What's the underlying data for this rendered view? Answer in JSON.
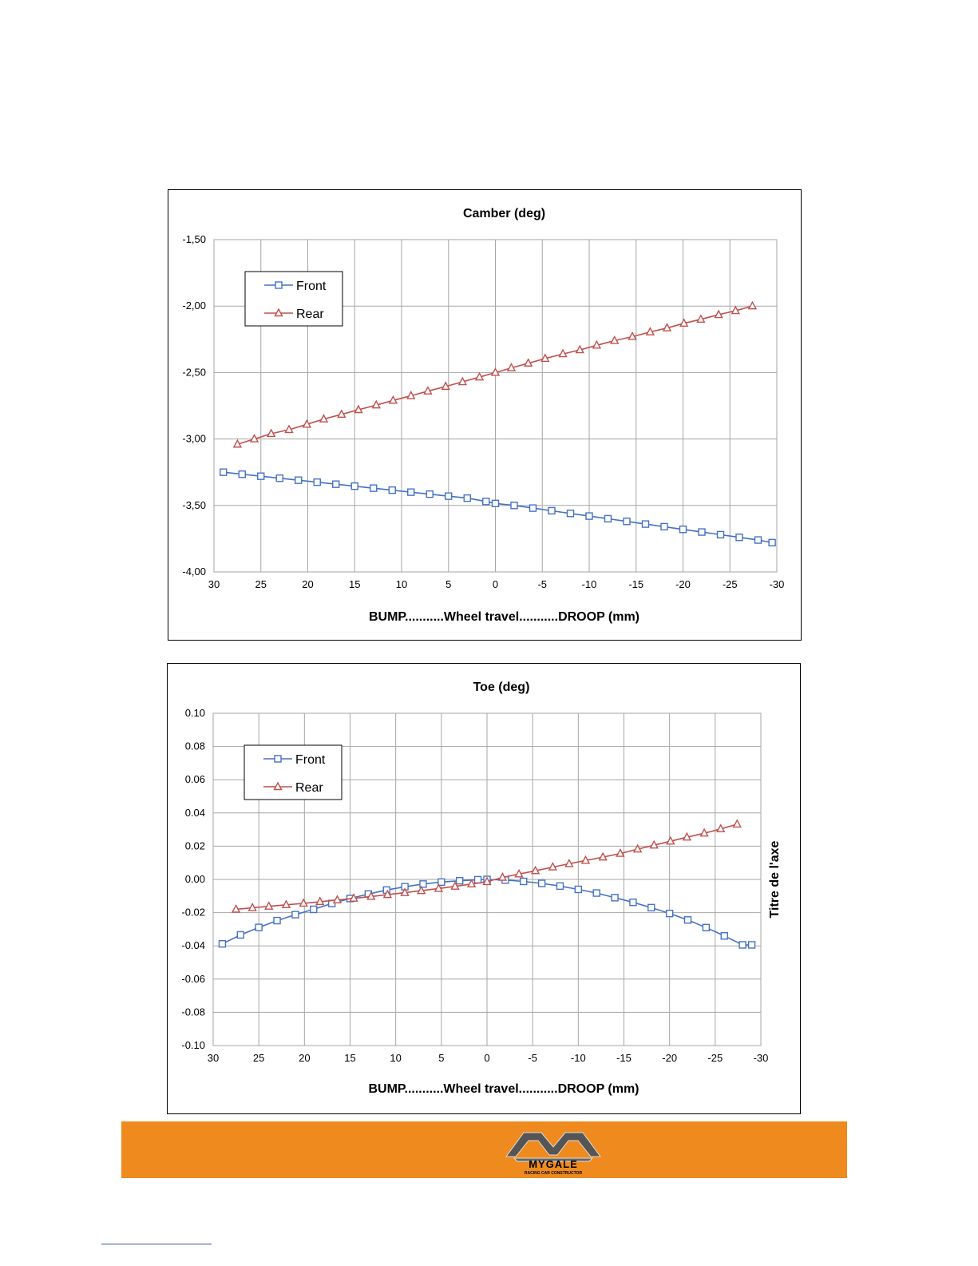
{
  "logo": {
    "brand": "mygale",
    "tagline": "RACING CAR CONSTRUCTOR"
  },
  "colors": {
    "front": "#4472c4",
    "rear": "#c0504d",
    "footer": "#ee8a1e"
  },
  "chart_data": [
    {
      "type": "line",
      "title": "Camber (deg)",
      "xlabel": "BUMP...........Wheel travel...........DROOP (mm)",
      "ylabel": "",
      "xlim": [
        30,
        -30
      ],
      "ylim": [
        -4.0,
        -1.5
      ],
      "xticks": [
        "30",
        "25",
        "20",
        "15",
        "10",
        "5",
        "0",
        "-5",
        "-10",
        "-15",
        "-20",
        "-25",
        "-30"
      ],
      "yticks": [
        "-4,00",
        "-3,50",
        "-3,00",
        "-2,50",
        "-2,00",
        "-1,50"
      ],
      "grid": true,
      "legend": "top-left",
      "series": [
        {
          "name": "Front",
          "marker": "square",
          "x": [
            29,
            27,
            25,
            23,
            21,
            19,
            17,
            15,
            13,
            11,
            9,
            7,
            5,
            3,
            1,
            0,
            -2,
            -4,
            -6,
            -8,
            -10,
            -12,
            -14,
            -16,
            -18,
            -20,
            -22,
            -24,
            -26,
            -28,
            -29.5
          ],
          "y": [
            -3.25,
            -3.265,
            -3.28,
            -3.295,
            -3.31,
            -3.325,
            -3.34,
            -3.355,
            -3.37,
            -3.385,
            -3.4,
            -3.415,
            -3.43,
            -3.445,
            -3.47,
            -3.485,
            -3.5,
            -3.52,
            -3.54,
            -3.56,
            -3.58,
            -3.6,
            -3.62,
            -3.64,
            -3.66,
            -3.68,
            -3.7,
            -3.72,
            -3.74,
            -3.76,
            -3.78
          ]
        },
        {
          "name": "Rear",
          "marker": "triangle",
          "x": [
            27.5,
            25.7,
            23.9,
            22.0,
            20.1,
            18.3,
            16.4,
            14.6,
            12.7,
            10.9,
            9.0,
            7.2,
            5.3,
            3.5,
            1.7,
            0.0,
            -1.7,
            -3.5,
            -5.3,
            -7.2,
            -9.0,
            -10.8,
            -12.7,
            -14.6,
            -16.5,
            -18.3,
            -20.1,
            -21.9,
            -23.8,
            -25.6,
            -27.4
          ],
          "y": [
            -3.04,
            -3.0,
            -2.96,
            -2.93,
            -2.89,
            -2.85,
            -2.815,
            -2.78,
            -2.745,
            -2.71,
            -2.675,
            -2.64,
            -2.605,
            -2.57,
            -2.535,
            -2.5,
            -2.465,
            -2.43,
            -2.395,
            -2.36,
            -2.33,
            -2.295,
            -2.26,
            -2.23,
            -2.195,
            -2.165,
            -2.13,
            -2.1,
            -2.065,
            -2.035,
            -2.0
          ]
        }
      ]
    },
    {
      "type": "line",
      "title": "Toe (deg)",
      "xlabel": "BUMP...........Wheel travel...........DROOP (mm)",
      "ylabel": "Titre de l'axe",
      "xlim": [
        30,
        -30
      ],
      "ylim": [
        -0.1,
        0.1
      ],
      "xticks": [
        "30",
        "25",
        "20",
        "15",
        "10",
        "5",
        "0",
        "-5",
        "-10",
        "-15",
        "-20",
        "-25",
        "-30"
      ],
      "yticks": [
        "-0.10",
        "-0.08",
        "-0.06",
        "-0.04",
        "-0.02",
        "0.00",
        "0.02",
        "0.04",
        "0.06",
        "0.08",
        "0.10"
      ],
      "grid": true,
      "legend": "top-left",
      "series": [
        {
          "name": "Front",
          "marker": "square",
          "x": [
            29,
            27,
            25,
            23,
            21,
            19,
            17,
            15,
            13,
            11,
            9,
            7,
            5,
            3,
            1,
            0,
            -2,
            -4,
            -6,
            -8,
            -10,
            -12,
            -14,
            -16,
            -18,
            -20,
            -22,
            -24,
            -26,
            -28,
            -29
          ],
          "y": [
            -0.0388,
            -0.0334,
            -0.0289,
            -0.0248,
            -0.0212,
            -0.018,
            -0.0145,
            -0.0115,
            -0.0088,
            -0.0064,
            -0.0044,
            -0.0028,
            -0.0016,
            -0.0008,
            -0.0002,
            0.0,
            -0.0004,
            -0.0012,
            -0.0024,
            -0.004,
            -0.006,
            -0.0082,
            -0.011,
            -0.0138,
            -0.017,
            -0.0205,
            -0.0244,
            -0.029,
            -0.034,
            -0.0394,
            -0.0394
          ]
        },
        {
          "name": "Rear",
          "marker": "triangle",
          "x": [
            27.5,
            25.7,
            23.9,
            22.0,
            20.1,
            18.3,
            16.4,
            14.6,
            12.7,
            10.9,
            9.0,
            7.2,
            5.3,
            3.5,
            1.7,
            0.0,
            -1.7,
            -3.5,
            -5.3,
            -7.2,
            -9.0,
            -10.8,
            -12.7,
            -14.6,
            -16.5,
            -18.3,
            -20.1,
            -21.9,
            -23.8,
            -25.6,
            -27.4
          ],
          "y": [
            -0.018,
            -0.0171,
            -0.0162,
            -0.0153,
            -0.0144,
            -0.0134,
            -0.0124,
            -0.0114,
            -0.0103,
            -0.0092,
            -0.008,
            -0.0068,
            -0.0055,
            -0.0042,
            -0.0028,
            -0.0014,
            0.0012,
            0.0032,
            0.0052,
            0.0074,
            0.0094,
            0.0114,
            0.0134,
            0.0156,
            0.0182,
            0.0206,
            0.023,
            0.0254,
            0.0278,
            0.0304,
            0.0332
          ]
        }
      ]
    }
  ]
}
